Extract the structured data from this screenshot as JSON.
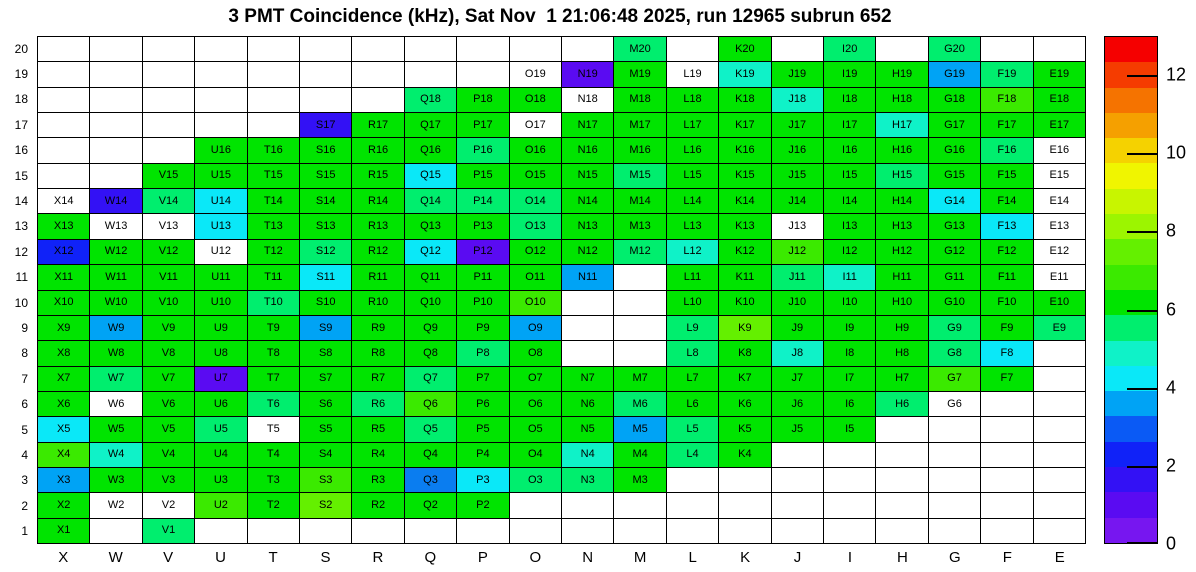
{
  "title": "3 PMT Coincidence (kHz), Sat Nov  1 21:06:48 2025, run 12965 subrun 652",
  "chart_data": {
    "type": "heatmap",
    "title": "3 PMT Coincidence (kHz), Sat Nov  1 21:06:48 2025, run 12965 subrun 652",
    "run": "12965",
    "subrun": "652",
    "timestamp_shown": "Sat Nov  1 21:06:48 2025",
    "columns": [
      "X",
      "W",
      "V",
      "U",
      "T",
      "S",
      "R",
      "Q",
      "P",
      "O",
      "N",
      "M",
      "L",
      "K",
      "J",
      "I",
      "H",
      "G",
      "F",
      "E"
    ],
    "rows": [
      20,
      19,
      18,
      17,
      16,
      15,
      14,
      13,
      12,
      11,
      10,
      9,
      8,
      7,
      6,
      5,
      4,
      3,
      2,
      1
    ],
    "colorbar": {
      "min": 0,
      "max": 13,
      "ticks": [
        0,
        2,
        4,
        6,
        8,
        10,
        12
      ],
      "bands_bottom_to_top": [
        "#7716F0",
        "#5A0BF2",
        "#3311F5",
        "#1022F8",
        "#0A5AF5",
        "#00A3F5",
        "#0AE8F8",
        "#0FF2C8",
        "#00EE6E",
        "#00E400",
        "#3BEA00",
        "#64F000",
        "#9CF500",
        "#C8F500",
        "#F0F500",
        "#F5D200",
        "#F5A000",
        "#F57300",
        "#F53C00",
        "#F50000"
      ]
    },
    "color_key": {
      "WH": {
        "hex": "#FFFFFF",
        "approx_kHz": 0.0
      },
      "VI": {
        "hex": "#5A0BF2",
        "approx_kHz": 1.0
      },
      "BV": {
        "hex": "#3311F5",
        "approx_kHz": 1.6
      },
      "BL": {
        "hex": "#1022F8",
        "approx_kHz": 2.3
      },
      "DB": {
        "hex": "#0A7DF0",
        "approx_kHz": 3.0
      },
      "LB": {
        "hex": "#00A3F5",
        "approx_kHz": 3.6
      },
      "CY": {
        "hex": "#0AE8F8",
        "approx_kHz": 4.2
      },
      "TQ": {
        "hex": "#0FF2C8",
        "approx_kHz": 4.9
      },
      "SG": {
        "hex": "#00EE6E",
        "approx_kHz": 5.5
      },
      "G": {
        "hex": "#00E400",
        "approx_kHz": 6.2
      },
      "CH": {
        "hex": "#3BEA00",
        "approx_kHz": 6.8
      },
      "YG": {
        "hex": "#64F000",
        "approx_kHz": 7.4
      }
    },
    "cells": [
      [
        null,
        null,
        null,
        null,
        null,
        null,
        null,
        null,
        null,
        null,
        null,
        [
          "M20",
          "SG"
        ],
        null,
        [
          "K20",
          "G"
        ],
        null,
        [
          "I20",
          "SG"
        ],
        null,
        [
          "G20",
          "SG"
        ],
        null,
        null
      ],
      [
        null,
        null,
        null,
        null,
        null,
        null,
        null,
        null,
        null,
        [
          "O19",
          "WH"
        ],
        [
          "N19",
          "VI"
        ],
        [
          "M19",
          "G"
        ],
        [
          "L19",
          "WH"
        ],
        [
          "K19",
          "TQ"
        ],
        [
          "J19",
          "G"
        ],
        [
          "I19",
          "G"
        ],
        [
          "H19",
          "G"
        ],
        [
          "G19",
          "LB"
        ],
        [
          "F19",
          "SG"
        ],
        [
          "E19",
          "G"
        ]
      ],
      [
        null,
        null,
        null,
        null,
        null,
        null,
        null,
        [
          "Q18",
          "SG"
        ],
        [
          "P18",
          "G"
        ],
        [
          "O18",
          "G"
        ],
        [
          "N18",
          "WH"
        ],
        [
          "M18",
          "G"
        ],
        [
          "L18",
          "G"
        ],
        [
          "K18",
          "G"
        ],
        [
          "J18",
          "TQ"
        ],
        [
          "I18",
          "G"
        ],
        [
          "H18",
          "G"
        ],
        [
          "G18",
          "G"
        ],
        [
          "F18",
          "CH"
        ],
        [
          "E18",
          "G"
        ]
      ],
      [
        null,
        null,
        null,
        null,
        null,
        [
          "S17",
          "BV"
        ],
        [
          "R17",
          "G"
        ],
        [
          "Q17",
          "G"
        ],
        [
          "P17",
          "G"
        ],
        [
          "O17",
          "WH"
        ],
        [
          "N17",
          "G"
        ],
        [
          "M17",
          "G"
        ],
        [
          "L17",
          "G"
        ],
        [
          "K17",
          "G"
        ],
        [
          "J17",
          "G"
        ],
        [
          "I17",
          "G"
        ],
        [
          "H17",
          "TQ"
        ],
        [
          "G17",
          "G"
        ],
        [
          "F17",
          "G"
        ],
        [
          "E17",
          "G"
        ]
      ],
      [
        null,
        null,
        null,
        [
          "U16",
          "G"
        ],
        [
          "T16",
          "G"
        ],
        [
          "S16",
          "G"
        ],
        [
          "R16",
          "G"
        ],
        [
          "Q16",
          "G"
        ],
        [
          "P16",
          "SG"
        ],
        [
          "O16",
          "G"
        ],
        [
          "N16",
          "G"
        ],
        [
          "M16",
          "G"
        ],
        [
          "L16",
          "G"
        ],
        [
          "K16",
          "G"
        ],
        [
          "J16",
          "G"
        ],
        [
          "I16",
          "G"
        ],
        [
          "H16",
          "G"
        ],
        [
          "G16",
          "G"
        ],
        [
          "F16",
          "SG"
        ],
        [
          "E16",
          "WH"
        ]
      ],
      [
        null,
        null,
        [
          "V15",
          "G"
        ],
        [
          "U15",
          "G"
        ],
        [
          "T15",
          "G"
        ],
        [
          "S15",
          "G"
        ],
        [
          "R15",
          "G"
        ],
        [
          "Q15",
          "CY"
        ],
        [
          "P15",
          "G"
        ],
        [
          "O15",
          "G"
        ],
        [
          "N15",
          "G"
        ],
        [
          "M15",
          "SG"
        ],
        [
          "L15",
          "G"
        ],
        [
          "K15",
          "G"
        ],
        [
          "J15",
          "G"
        ],
        [
          "I15",
          "G"
        ],
        [
          "H15",
          "SG"
        ],
        [
          "G15",
          "G"
        ],
        [
          "F15",
          "G"
        ],
        [
          "E15",
          "WH"
        ]
      ],
      [
        [
          "X14",
          "WH"
        ],
        [
          "W14",
          "BV"
        ],
        [
          "V14",
          "SG"
        ],
        [
          "U14",
          "CY"
        ],
        [
          "T14",
          "G"
        ],
        [
          "S14",
          "G"
        ],
        [
          "R14",
          "G"
        ],
        [
          "Q14",
          "SG"
        ],
        [
          "P14",
          "SG"
        ],
        [
          "O14",
          "SG"
        ],
        [
          "N14",
          "G"
        ],
        [
          "M14",
          "G"
        ],
        [
          "L14",
          "G"
        ],
        [
          "K14",
          "G"
        ],
        [
          "J14",
          "G"
        ],
        [
          "I14",
          "G"
        ],
        [
          "H14",
          "G"
        ],
        [
          "G14",
          "CY"
        ],
        [
          "F14",
          "G"
        ],
        [
          "E14",
          "WH"
        ]
      ],
      [
        [
          "X13",
          "G"
        ],
        [
          "W13",
          "WH"
        ],
        [
          "V13",
          "WH"
        ],
        [
          "U13",
          "CY"
        ],
        [
          "T13",
          "G"
        ],
        [
          "S13",
          "G"
        ],
        [
          "R13",
          "G"
        ],
        [
          "Q13",
          "G"
        ],
        [
          "P13",
          "G"
        ],
        [
          "O13",
          "SG"
        ],
        [
          "N13",
          "G"
        ],
        [
          "M13",
          "G"
        ],
        [
          "L13",
          "G"
        ],
        [
          "K13",
          "G"
        ],
        [
          "J13",
          "WH"
        ],
        [
          "I13",
          "G"
        ],
        [
          "H13",
          "G"
        ],
        [
          "G13",
          "G"
        ],
        [
          "F13",
          "CY"
        ],
        [
          "E13",
          "WH"
        ]
      ],
      [
        [
          "X12",
          "BL"
        ],
        [
          "W12",
          "G"
        ],
        [
          "V12",
          "G"
        ],
        [
          "U12",
          "WH"
        ],
        [
          "T12",
          "G"
        ],
        [
          "S12",
          "SG"
        ],
        [
          "R12",
          "G"
        ],
        [
          "Q12",
          "CY"
        ],
        [
          "P12",
          "VI"
        ],
        [
          "O12",
          "G"
        ],
        [
          "N12",
          "G"
        ],
        [
          "M12",
          "SG"
        ],
        [
          "L12",
          "TQ"
        ],
        [
          "K12",
          "G"
        ],
        [
          "J12",
          "CH"
        ],
        [
          "I12",
          "G"
        ],
        [
          "H12",
          "G"
        ],
        [
          "G12",
          "G"
        ],
        [
          "F12",
          "G"
        ],
        [
          "E12",
          "WH"
        ]
      ],
      [
        [
          "X11",
          "G"
        ],
        [
          "W11",
          "G"
        ],
        [
          "V11",
          "G"
        ],
        [
          "U11",
          "G"
        ],
        [
          "T11",
          "G"
        ],
        [
          "S11",
          "CY"
        ],
        [
          "R11",
          "G"
        ],
        [
          "Q11",
          "G"
        ],
        [
          "P11",
          "G"
        ],
        [
          "O11",
          "G"
        ],
        [
          "N11",
          "LB"
        ],
        null,
        [
          "L11",
          "G"
        ],
        [
          "K11",
          "G"
        ],
        [
          "J11",
          "SG"
        ],
        [
          "I11",
          "TQ"
        ],
        [
          "H11",
          "G"
        ],
        [
          "G11",
          "G"
        ],
        [
          "F11",
          "G"
        ],
        [
          "E11",
          "WH"
        ]
      ],
      [
        [
          "X10",
          "G"
        ],
        [
          "W10",
          "G"
        ],
        [
          "V10",
          "G"
        ],
        [
          "U10",
          "G"
        ],
        [
          "T10",
          "SG"
        ],
        [
          "S10",
          "G"
        ],
        [
          "R10",
          "G"
        ],
        [
          "Q10",
          "G"
        ],
        [
          "P10",
          "G"
        ],
        [
          "O10",
          "CH"
        ],
        null,
        null,
        [
          "L10",
          "G"
        ],
        [
          "K10",
          "G"
        ],
        [
          "J10",
          "G"
        ],
        [
          "I10",
          "G"
        ],
        [
          "H10",
          "G"
        ],
        [
          "G10",
          "G"
        ],
        [
          "F10",
          "G"
        ],
        [
          "E10",
          "G"
        ]
      ],
      [
        [
          "X9",
          "G"
        ],
        [
          "W9",
          "LB"
        ],
        [
          "V9",
          "G"
        ],
        [
          "U9",
          "G"
        ],
        [
          "T9",
          "G"
        ],
        [
          "S9",
          "LB"
        ],
        [
          "R9",
          "G"
        ],
        [
          "Q9",
          "G"
        ],
        [
          "P9",
          "G"
        ],
        [
          "O9",
          "LB"
        ],
        null,
        null,
        [
          "L9",
          "SG"
        ],
        [
          "K9",
          "YG"
        ],
        [
          "J9",
          "G"
        ],
        [
          "I9",
          "G"
        ],
        [
          "H9",
          "G"
        ],
        [
          "G9",
          "SG"
        ],
        [
          "F9",
          "G"
        ],
        [
          "E9",
          "SG"
        ]
      ],
      [
        [
          "X8",
          "G"
        ],
        [
          "W8",
          "G"
        ],
        [
          "V8",
          "G"
        ],
        [
          "U8",
          "G"
        ],
        [
          "T8",
          "G"
        ],
        [
          "S8",
          "G"
        ],
        [
          "R8",
          "G"
        ],
        [
          "Q8",
          "G"
        ],
        [
          "P8",
          "SG"
        ],
        [
          "O8",
          "G"
        ],
        null,
        null,
        [
          "L8",
          "SG"
        ],
        [
          "K8",
          "G"
        ],
        [
          "J8",
          "TQ"
        ],
        [
          "I8",
          "G"
        ],
        [
          "H8",
          "G"
        ],
        [
          "G8",
          "SG"
        ],
        [
          "F8",
          "CY"
        ],
        null
      ],
      [
        [
          "X7",
          "G"
        ],
        [
          "W7",
          "SG"
        ],
        [
          "V7",
          "G"
        ],
        [
          "U7",
          "VI"
        ],
        [
          "T7",
          "G"
        ],
        [
          "S7",
          "G"
        ],
        [
          "R7",
          "G"
        ],
        [
          "Q7",
          "SG"
        ],
        [
          "P7",
          "G"
        ],
        [
          "O7",
          "G"
        ],
        [
          "N7",
          "G"
        ],
        [
          "M7",
          "G"
        ],
        [
          "L7",
          "G"
        ],
        [
          "K7",
          "G"
        ],
        [
          "J7",
          "G"
        ],
        [
          "I7",
          "G"
        ],
        [
          "H7",
          "G"
        ],
        [
          "G7",
          "CH"
        ],
        [
          "F7",
          "G"
        ],
        null
      ],
      [
        [
          "X6",
          "G"
        ],
        [
          "W6",
          "WH"
        ],
        [
          "V6",
          "G"
        ],
        [
          "U6",
          "G"
        ],
        [
          "T6",
          "SG"
        ],
        [
          "S6",
          "G"
        ],
        [
          "R6",
          "SG"
        ],
        [
          "Q6",
          "CH"
        ],
        [
          "P6",
          "G"
        ],
        [
          "O6",
          "G"
        ],
        [
          "N6",
          "G"
        ],
        [
          "M6",
          "SG"
        ],
        [
          "L6",
          "G"
        ],
        [
          "K6",
          "G"
        ],
        [
          "J6",
          "G"
        ],
        [
          "I6",
          "G"
        ],
        [
          "H6",
          "SG"
        ],
        [
          "G6",
          "WH"
        ],
        null,
        null
      ],
      [
        [
          "X5",
          "CY"
        ],
        [
          "W5",
          "G"
        ],
        [
          "V5",
          "G"
        ],
        [
          "U5",
          "SG"
        ],
        [
          "T5",
          "WH"
        ],
        [
          "S5",
          "G"
        ],
        [
          "R5",
          "G"
        ],
        [
          "Q5",
          "SG"
        ],
        [
          "P5",
          "G"
        ],
        [
          "O5",
          "G"
        ],
        [
          "N5",
          "G"
        ],
        [
          "M5",
          "LB"
        ],
        [
          "L5",
          "SG"
        ],
        [
          "K5",
          "G"
        ],
        [
          "J5",
          "G"
        ],
        [
          "I5",
          "G"
        ],
        null,
        null,
        null,
        null
      ],
      [
        [
          "X4",
          "CH"
        ],
        [
          "W4",
          "TQ"
        ],
        [
          "V4",
          "G"
        ],
        [
          "U4",
          "G"
        ],
        [
          "T4",
          "G"
        ],
        [
          "S4",
          "G"
        ],
        [
          "R4",
          "G"
        ],
        [
          "Q4",
          "G"
        ],
        [
          "P4",
          "G"
        ],
        [
          "O4",
          "G"
        ],
        [
          "N4",
          "TQ"
        ],
        [
          "M4",
          "G"
        ],
        [
          "L4",
          "SG"
        ],
        [
          "K4",
          "G"
        ],
        null,
        null,
        null,
        null,
        null,
        null
      ],
      [
        [
          "X3",
          "LB"
        ],
        [
          "W3",
          "G"
        ],
        [
          "V3",
          "G"
        ],
        [
          "U3",
          "G"
        ],
        [
          "T3",
          "G"
        ],
        [
          "S3",
          "CH"
        ],
        [
          "R3",
          "G"
        ],
        [
          "Q3",
          "DB"
        ],
        [
          "P3",
          "CY"
        ],
        [
          "O3",
          "SG"
        ],
        [
          "N3",
          "SG"
        ],
        [
          "M3",
          "G"
        ],
        null,
        null,
        null,
        null,
        null,
        null,
        null,
        null
      ],
      [
        [
          "X2",
          "G"
        ],
        [
          "W2",
          "WH"
        ],
        [
          "V2",
          "WH"
        ],
        [
          "U2",
          "CH"
        ],
        [
          "T2",
          "G"
        ],
        [
          "S2",
          "YG"
        ],
        [
          "R2",
          "G"
        ],
        [
          "Q2",
          "G"
        ],
        [
          "P2",
          "G"
        ],
        null,
        null,
        null,
        null,
        null,
        null,
        null,
        null,
        null,
        null,
        null
      ],
      [
        [
          "X1",
          "G"
        ],
        null,
        [
          "V1",
          "SG"
        ],
        null,
        null,
        null,
        null,
        null,
        null,
        null,
        null,
        null,
        null,
        null,
        null,
        null,
        null,
        null,
        null,
        null
      ]
    ]
  }
}
